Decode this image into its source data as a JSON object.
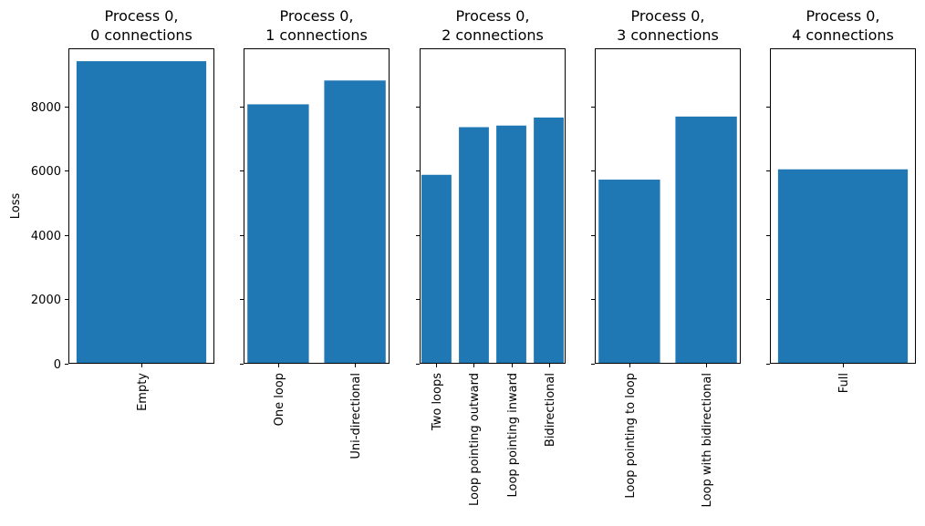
{
  "chart_data": [
    {
      "type": "bar",
      "title_lines": [
        "Process 0,",
        "0 connections"
      ],
      "ylabel": "Loss",
      "categories": [
        "Empty"
      ],
      "values": [
        9400
      ],
      "ylim": [
        0,
        9800
      ],
      "yticks": [
        0,
        2000,
        4000,
        6000,
        8000
      ],
      "show_ytick_labels": true,
      "color": "#1f77b4"
    },
    {
      "type": "bar",
      "title_lines": [
        "Process 0,",
        "1 connections"
      ],
      "ylabel": "",
      "categories": [
        "One loop",
        "Uni-directional"
      ],
      "values": [
        8060,
        8800
      ],
      "ylim": [
        0,
        9800
      ],
      "yticks": [
        0,
        2000,
        4000,
        6000,
        8000
      ],
      "show_ytick_labels": false,
      "color": "#1f77b4"
    },
    {
      "type": "bar",
      "title_lines": [
        "Process 0,",
        "2 connections"
      ],
      "ylabel": "",
      "categories": [
        "Two loops",
        "Loop pointing outward",
        "Loop pointing inward",
        "Bidirectional"
      ],
      "values": [
        5870,
        7350,
        7400,
        7650
      ],
      "ylim": [
        0,
        9800
      ],
      "yticks": [
        0,
        2000,
        4000,
        6000,
        8000
      ],
      "show_ytick_labels": false,
      "color": "#1f77b4"
    },
    {
      "type": "bar",
      "title_lines": [
        "Process 0,",
        "3 connections"
      ],
      "ylabel": "",
      "categories": [
        "Loop pointing to loop",
        "Loop with bidirectional"
      ],
      "values": [
        5720,
        7680
      ],
      "ylim": [
        0,
        9800
      ],
      "yticks": [
        0,
        2000,
        4000,
        6000,
        8000
      ],
      "show_ytick_labels": false,
      "color": "#1f77b4"
    },
    {
      "type": "bar",
      "title_lines": [
        "Process 0,",
        "4 connections"
      ],
      "ylabel": "",
      "categories": [
        "Full"
      ],
      "values": [
        6040
      ],
      "ylim": [
        0,
        9800
      ],
      "yticks": [
        0,
        2000,
        4000,
        6000,
        8000
      ],
      "show_ytick_labels": false,
      "color": "#1f77b4"
    }
  ]
}
